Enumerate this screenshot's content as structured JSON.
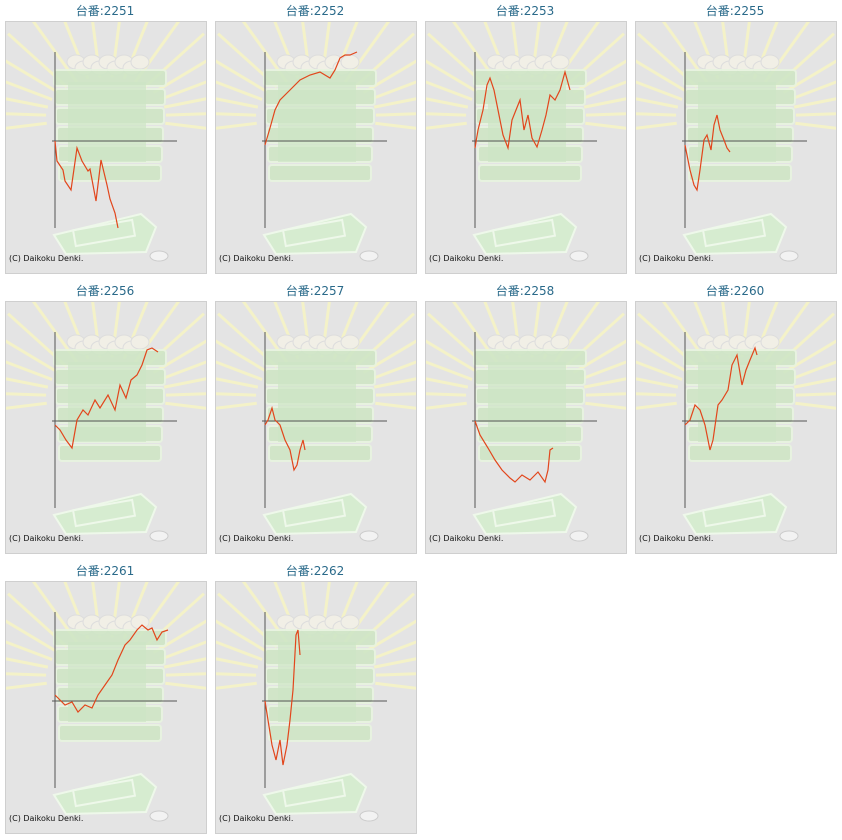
{
  "copyright": "(C) Daikoku Denki.",
  "colors": {
    "line": "#e2461c",
    "axis": "#555555",
    "title": "#2a6a8a"
  },
  "chart_data": [
    {
      "type": "line",
      "title": "台番:2251",
      "x": [
        0,
        2,
        8,
        10,
        16,
        22,
        27,
        33,
        35,
        41,
        46,
        52,
        55,
        60,
        63
      ],
      "y": [
        0,
        -20,
        -29,
        -40,
        -49,
        -7,
        -20,
        -30,
        -28,
        -60,
        -19,
        -44,
        -58,
        -72,
        -87
      ]
    },
    {
      "type": "line",
      "title": "台番:2252",
      "x": [
        0,
        5,
        10,
        15,
        25,
        35,
        45,
        55,
        65,
        70,
        75,
        80,
        85,
        92
      ],
      "y": [
        -4,
        13,
        31,
        41,
        51,
        61,
        66,
        69,
        63,
        71,
        83,
        86,
        86,
        89
      ]
    },
    {
      "type": "line",
      "title": "台番:2253",
      "x": [
        0,
        3,
        8,
        12,
        15,
        19,
        23,
        28,
        33,
        37,
        41,
        45,
        49,
        53,
        57,
        62,
        67,
        71,
        75,
        80,
        85,
        90,
        95
      ],
      "y": [
        -7,
        11,
        31,
        56,
        63,
        51,
        31,
        6,
        -7,
        21,
        31,
        41,
        11,
        26,
        3,
        -6,
        11,
        26,
        46,
        41,
        51,
        69,
        51
      ]
    },
    {
      "type": "line",
      "title": "台番:2255",
      "x": [
        0,
        5,
        9,
        12,
        15,
        19,
        22,
        26,
        29,
        32,
        35,
        39,
        42,
        45
      ],
      "y": [
        -4,
        -29,
        -44,
        -49,
        -29,
        1,
        6,
        -9,
        16,
        26,
        11,
        1,
        -7,
        -11
      ]
    },
    {
      "type": "line",
      "title": "台番:2256",
      "x": [
        0,
        5,
        11,
        17,
        22,
        28,
        33,
        40,
        45,
        53,
        60,
        65,
        71,
        76,
        82,
        87,
        92,
        97,
        103
      ],
      "y": [
        -4,
        -9,
        -19,
        -27,
        1,
        11,
        6,
        21,
        13,
        26,
        11,
        36,
        23,
        41,
        46,
        56,
        71,
        73,
        69
      ]
    },
    {
      "type": "line",
      "title": "台番:2257",
      "x": [
        0,
        3,
        7,
        10,
        15,
        20,
        25,
        29,
        32,
        35,
        38,
        40
      ],
      "y": [
        -4,
        1,
        13,
        1,
        -4,
        -19,
        -29,
        -49,
        -44,
        -29,
        -19,
        -29
      ]
    },
    {
      "type": "line",
      "title": "台番:2258",
      "x": [
        0,
        5,
        13,
        20,
        27,
        35,
        40,
        47,
        55,
        63,
        70,
        73,
        75,
        78
      ],
      "y": [
        0,
        -14,
        -27,
        -39,
        -49,
        -57,
        -61,
        -54,
        -59,
        -51,
        -61,
        -49,
        -29,
        -27
      ]
    },
    {
      "type": "line",
      "title": "台番:2260",
      "x": [
        0,
        5,
        10,
        15,
        20,
        25,
        28,
        33,
        37,
        43,
        47,
        52,
        57,
        61,
        65,
        70,
        72
      ],
      "y": [
        -4,
        1,
        16,
        11,
        -4,
        -29,
        -19,
        16,
        21,
        31,
        56,
        66,
        36,
        51,
        61,
        73,
        66
      ]
    },
    {
      "type": "line",
      "title": "台番:2261",
      "x": [
        0,
        5,
        10,
        17,
        23,
        30,
        37,
        43,
        50,
        57,
        63,
        70,
        75,
        82,
        87,
        93,
        97,
        102,
        107,
        113
      ],
      "y": [
        6,
        1,
        -4,
        -1,
        -11,
        -4,
        -7,
        6,
        16,
        26,
        41,
        56,
        61,
        71,
        76,
        71,
        73,
        61,
        69,
        71
      ]
    },
    {
      "type": "line",
      "title": "台番:2262",
      "x": [
        0,
        3,
        7,
        11,
        15,
        18,
        22,
        25,
        28,
        31,
        33,
        35
      ],
      "y": [
        0,
        -19,
        -44,
        -59,
        -39,
        -64,
        -44,
        -19,
        11,
        66,
        71,
        46
      ]
    }
  ]
}
